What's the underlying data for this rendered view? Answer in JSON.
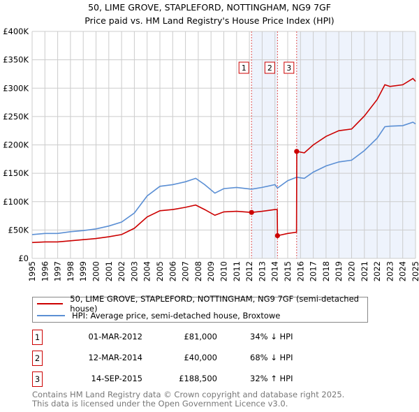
{
  "chart_data": {
    "type": "line",
    "title": "50, LIME GROVE, STAPLEFORD, NOTTINGHAM, NG9 7GF",
    "subtitle": "Price paid vs. HM Land Registry's House Price Index (HPI)",
    "xlim": [
      1995,
      2025
    ],
    "ylim": [
      0,
      400000
    ],
    "y_ticks": [
      {
        "v": 0,
        "l": "£0"
      },
      {
        "v": 50000,
        "l": "£50K"
      },
      {
        "v": 100000,
        "l": "£100K"
      },
      {
        "v": 150000,
        "l": "£150K"
      },
      {
        "v": 200000,
        "l": "£200K"
      },
      {
        "v": 250000,
        "l": "£250K"
      },
      {
        "v": 300000,
        "l": "£300K"
      },
      {
        "v": 350000,
        "l": "£350K"
      },
      {
        "v": 400000,
        "l": "£400K"
      }
    ],
    "x_ticks": [
      "1995",
      "1996",
      "1997",
      "1998",
      "1999",
      "2000",
      "2001",
      "2002",
      "2003",
      "2004",
      "2005",
      "2006",
      "2007",
      "2008",
      "2009",
      "2010",
      "2011",
      "2012",
      "2013",
      "2014",
      "2015",
      "2016",
      "2017",
      "2018",
      "2019",
      "2020",
      "2021",
      "2022",
      "2023",
      "2024",
      "2025"
    ],
    "grid": true,
    "series": [
      {
        "name": "50, LIME GROVE, STAPLEFORD, NOTTINGHAM, NG9 7GF (semi-detached house)",
        "color": "#cc0000",
        "x": [
          1995,
          1996,
          1997,
          1998,
          1999,
          2000,
          2001,
          2002,
          2003,
          2004,
          2005,
          2006,
          2007,
          2007.8,
          2008.5,
          2009.3,
          2010,
          2011,
          2012.17,
          2013,
          2014,
          2014.18,
          2014.2,
          2015,
          2015.69,
          2015.71,
          2016.3,
          2017,
          2018,
          2019,
          2020,
          2021,
          2022,
          2022.6,
          2023,
          2024,
          2024.8,
          2025
        ],
        "y": [
          28000,
          29000,
          29000,
          31000,
          33000,
          35000,
          38000,
          42000,
          53000,
          73000,
          84000,
          86000,
          90000,
          94000,
          86000,
          76000,
          82000,
          83000,
          81000,
          83000,
          86000,
          86000,
          40000,
          44000,
          46000,
          188500,
          186000,
          200000,
          215000,
          225000,
          228000,
          251000,
          280000,
          306000,
          303000,
          306000,
          317000,
          312000
        ]
      },
      {
        "name": "HPI: Average price, semi-detached house, Broxtowe",
        "color": "#5b8fd4",
        "x": [
          1995,
          1996,
          1997,
          1998,
          1999,
          2000,
          2001,
          2002,
          2003,
          2004,
          2005,
          2006,
          2007,
          2007.8,
          2008.5,
          2009.3,
          2010,
          2011,
          2012.17,
          2013,
          2014,
          2014.2,
          2015,
          2015.7,
          2016.3,
          2017,
          2018,
          2019,
          2020,
          2021,
          2022,
          2022.6,
          2023,
          2024,
          2024.8,
          2025
        ],
        "y": [
          42000,
          44000,
          44000,
          47000,
          49000,
          52000,
          57000,
          64000,
          80000,
          110000,
          127000,
          130000,
          135000,
          141000,
          130000,
          115000,
          123000,
          125000,
          122000,
          125000,
          130000,
          124000,
          137000,
          143000,
          141000,
          152000,
          163000,
          170000,
          173000,
          190000,
          212000,
          232000,
          233000,
          234000,
          240000,
          237000
        ]
      }
    ],
    "sales": [
      {
        "id": "1",
        "x": 2012.17,
        "y": 81000,
        "date": "01-MAR-2012",
        "price": "£81,000",
        "hpi": "34% ↓ HPI"
      },
      {
        "id": "2",
        "x": 2014.2,
        "y": 40000,
        "date": "12-MAR-2014",
        "price": "£40,000",
        "hpi": "68% ↓ HPI"
      },
      {
        "id": "3",
        "x": 2015.7,
        "y": 188500,
        "date": "14-SEP-2015",
        "price": "£188,500",
        "hpi": "32% ↑ HPI"
      }
    ]
  },
  "footer": {
    "line1": "Contains HM Land Registry data © Crown copyright and database right 2025.",
    "line2": "This data is licensed under the Open Government Licence v3.0."
  }
}
